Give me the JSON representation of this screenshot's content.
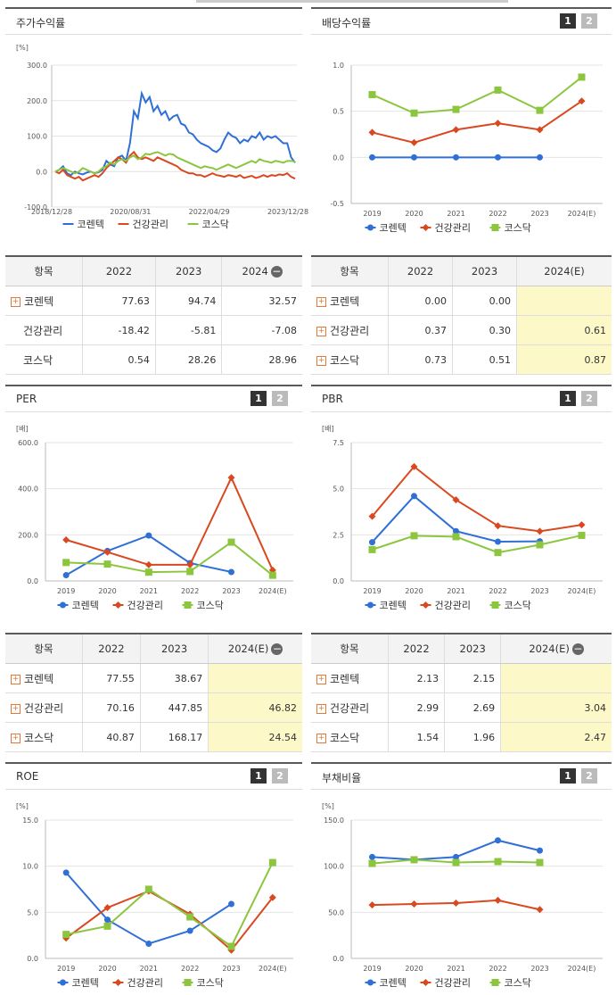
{
  "colors": {
    "kontech": "#2f6fd6",
    "health": "#d9481f",
    "kosdaq": "#8cc63f"
  },
  "legend": [
    "코렌텍",
    "건강관리",
    "코스닥"
  ],
  "pager": {
    "p1": "1",
    "p2": "2"
  },
  "charts": {
    "stock": {
      "title": "주가수익률",
      "unit": "[%]",
      "chart_data": {
        "type": "line",
        "x_ticks": [
          "2018/12/28",
          "2020/08/31",
          "2022/04/29",
          "2023/12/28"
        ],
        "y_ticks": [
          "300.0",
          "200.0",
          "100.0",
          "0.0",
          "-100.0"
        ],
        "ylim": [
          -100,
          300
        ],
        "series": [
          {
            "name": "코렌텍",
            "values": [
              0,
              5,
              15,
              -5,
              -10,
              0,
              -5,
              -8,
              -3,
              0,
              -5,
              -2,
              5,
              30,
              20,
              15,
              40,
              45,
              30,
              80,
              170,
              150,
              220,
              195,
              210,
              170,
              185,
              160,
              170,
              145,
              155,
              160,
              135,
              130,
              110,
              105,
              90,
              80,
              75,
              70,
              60,
              55,
              65,
              90,
              110,
              100,
              95,
              80,
              90,
              85,
              100,
              95,
              110,
              90,
              100,
              95,
              100,
              90,
              80,
              80,
              40,
              25
            ]
          },
          {
            "name": "건강관리",
            "values": [
              0,
              -5,
              5,
              -10,
              -15,
              -20,
              -15,
              -25,
              -20,
              -15,
              -10,
              -15,
              -5,
              10,
              20,
              30,
              40,
              35,
              25,
              45,
              55,
              40,
              35,
              40,
              35,
              30,
              40,
              35,
              30,
              25,
              20,
              15,
              5,
              0,
              -5,
              -5,
              -10,
              -10,
              -15,
              -10,
              -5,
              -10,
              -12,
              -15,
              -10,
              -12,
              -15,
              -10,
              -18,
              -15,
              -12,
              -18,
              -15,
              -10,
              -15,
              -10,
              -12,
              -8,
              -10,
              -5,
              -15,
              -20
            ]
          },
          {
            "name": "코스닥",
            "values": [
              0,
              5,
              10,
              5,
              0,
              -5,
              0,
              10,
              5,
              0,
              -5,
              0,
              10,
              15,
              25,
              20,
              30,
              35,
              30,
              40,
              45,
              35,
              40,
              50,
              48,
              52,
              55,
              50,
              45,
              50,
              48,
              40,
              35,
              30,
              25,
              20,
              15,
              10,
              15,
              12,
              10,
              5,
              10,
              15,
              20,
              15,
              10,
              15,
              20,
              25,
              30,
              25,
              35,
              30,
              28,
              25,
              30,
              28,
              25,
              30,
              30,
              28
            ]
          }
        ]
      }
    },
    "dividend": {
      "title": "배당수익률",
      "unit": "",
      "chart_data": {
        "type": "line",
        "categories": [
          "2019",
          "2020",
          "2021",
          "2022",
          "2023",
          "2024(E)"
        ],
        "y_ticks": [
          "1.0",
          "0.5",
          "0.0",
          "-0.5"
        ],
        "ylim": [
          -0.5,
          1.0
        ],
        "series": [
          {
            "name": "코렌텍",
            "values": [
              0,
              0,
              0,
              0,
              0,
              null
            ]
          },
          {
            "name": "건강관리",
            "values": [
              0.27,
              0.16,
              0.3,
              0.37,
              0.3,
              0.61
            ]
          },
          {
            "name": "코스닥",
            "values": [
              0.68,
              0.48,
              0.52,
              0.73,
              0.51,
              0.87
            ]
          }
        ]
      }
    },
    "per": {
      "title": "PER",
      "unit": "[배]",
      "chart_data": {
        "type": "line",
        "categories": [
          "2019",
          "2020",
          "2021",
          "2022",
          "2023",
          "2024(E)"
        ],
        "y_ticks": [
          "600.0",
          "400.0",
          "200.0",
          "0.0"
        ],
        "ylim": [
          0,
          600
        ],
        "series": [
          {
            "name": "코렌텍",
            "values": [
              25,
              130,
              197,
              77.55,
              38.67,
              null
            ]
          },
          {
            "name": "건강관리",
            "values": [
              178,
              125,
              70,
              70.16,
              447.85,
              46.82
            ]
          },
          {
            "name": "코스닥",
            "values": [
              80,
              73,
              38,
              40.87,
              168.17,
              24.54
            ]
          }
        ]
      }
    },
    "pbr": {
      "title": "PBR",
      "unit": "[배]",
      "chart_data": {
        "type": "line",
        "categories": [
          "2019",
          "2020",
          "2021",
          "2022",
          "2023",
          "2024(E)"
        ],
        "y_ticks": [
          "7.5",
          "5.0",
          "2.5",
          "0.0"
        ],
        "ylim": [
          0,
          7.5
        ],
        "series": [
          {
            "name": "코렌텍",
            "values": [
              2.1,
              4.6,
              2.7,
              2.13,
              2.15,
              null
            ]
          },
          {
            "name": "건강관리",
            "values": [
              3.5,
              6.2,
              4.4,
              2.99,
              2.69,
              3.04
            ]
          },
          {
            "name": "코스닥",
            "values": [
              1.7,
              2.45,
              2.4,
              1.54,
              1.96,
              2.47
            ]
          }
        ]
      }
    },
    "roe": {
      "title": "ROE",
      "unit": "[%]",
      "chart_data": {
        "type": "line",
        "categories": [
          "2019",
          "2020",
          "2021",
          "2022",
          "2023",
          "2024(E)"
        ],
        "y_ticks": [
          "15.0",
          "10.0",
          "5.0",
          "0.0"
        ],
        "ylim": [
          0,
          15
        ],
        "series": [
          {
            "name": "코렌텍",
            "values": [
              9.3,
              4.2,
              1.6,
              3.0,
              5.9,
              null
            ]
          },
          {
            "name": "건강관리",
            "values": [
              2.2,
              5.5,
              7.3,
              4.8,
              0.9,
              6.6
            ]
          },
          {
            "name": "코스닥",
            "values": [
              2.6,
              3.5,
              7.5,
              4.5,
              1.3,
              10.4
            ]
          }
        ]
      }
    },
    "debt": {
      "title": "부채비율",
      "unit": "[%]",
      "chart_data": {
        "type": "line",
        "categories": [
          "2019",
          "2020",
          "2021",
          "2022",
          "2023",
          "2024(E)"
        ],
        "y_ticks": [
          "150.0",
          "100.0",
          "50.0",
          "0.0"
        ],
        "ylim": [
          0,
          150
        ],
        "series": [
          {
            "name": "코렌텍",
            "values": [
              110,
              107,
              110,
              128,
              117,
              null
            ]
          },
          {
            "name": "건강관리",
            "values": [
              58,
              59,
              60,
              63,
              53,
              null
            ]
          },
          {
            "name": "코스닥",
            "values": [
              103,
              107,
              104,
              105,
              104,
              null
            ]
          }
        ]
      }
    }
  },
  "tables": {
    "stock": {
      "headers": [
        "항목",
        "2022",
        "2023",
        "2024"
      ],
      "rows": [
        [
          "코렌텍",
          "77.63",
          "94.74",
          "32.57"
        ],
        [
          "건강관리",
          "-18.42",
          "-5.81",
          "-7.08"
        ],
        [
          "코스닥",
          "0.54",
          "28.26",
          "28.96"
        ]
      ]
    },
    "dividend": {
      "headers": [
        "항목",
        "2022",
        "2023",
        "2024(E)"
      ],
      "rows": [
        [
          "코렌텍",
          "0.00",
          "0.00",
          ""
        ],
        [
          "건강관리",
          "0.37",
          "0.30",
          "0.61"
        ],
        [
          "코스닥",
          "0.73",
          "0.51",
          "0.87"
        ]
      ]
    },
    "per": {
      "headers": [
        "항목",
        "2022",
        "2023",
        "2024(E)"
      ],
      "rows": [
        [
          "코렌텍",
          "77.55",
          "38.67",
          ""
        ],
        [
          "건강관리",
          "70.16",
          "447.85",
          "46.82"
        ],
        [
          "코스닥",
          "40.87",
          "168.17",
          "24.54"
        ]
      ]
    },
    "pbr": {
      "headers": [
        "항목",
        "2022",
        "2023",
        "2024(E)"
      ],
      "rows": [
        [
          "코렌텍",
          "2.13",
          "2.15",
          ""
        ],
        [
          "건강관리",
          "2.99",
          "2.69",
          "3.04"
        ],
        [
          "코스닥",
          "1.54",
          "1.96",
          "2.47"
        ]
      ]
    }
  }
}
